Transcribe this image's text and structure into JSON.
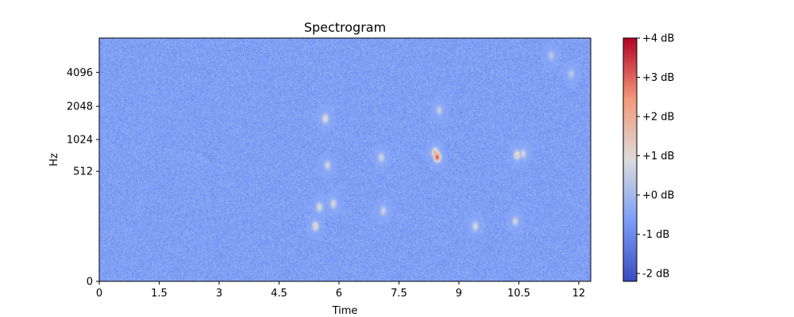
{
  "chart_data": {
    "type": "heatmap",
    "title": "Spectrogram",
    "xlabel": "Time",
    "ylabel": "Hz",
    "xlim": [
      0,
      12.3
    ],
    "x_ticks": [
      0,
      1.5,
      3,
      4.5,
      6,
      7.5,
      9,
      10.5,
      12
    ],
    "x_tick_labels": [
      "0",
      "1.5",
      "3",
      "4.5",
      "6",
      "7.5",
      "9",
      "10.5",
      "12"
    ],
    "y_scale": "log2-like",
    "y_ticks": [
      0,
      512,
      1024,
      2048,
      4096
    ],
    "y_tick_labels": [
      "0",
      "512",
      "1024",
      "2048",
      "4096"
    ],
    "colormap": "coolwarm",
    "colors": {
      "low": "#3b4cc0",
      "mid": "#dddcdc",
      "high": "#b40426"
    },
    "colorbar": {
      "vmin": -2.2,
      "vmax": 4.0,
      "ticks": [
        -2,
        -1,
        0,
        1,
        2,
        3,
        4
      ],
      "tick_labels": [
        "-2 dB",
        "-1 dB",
        "+0 dB",
        "+1 dB",
        "+2 dB",
        "+3 dB",
        "+4 dB"
      ]
    },
    "background_level_db": -0.6,
    "hotspots": [
      {
        "time": 8.45,
        "hz": 710,
        "db": 4.0
      },
      {
        "time": 8.4,
        "hz": 780,
        "db": 2.5
      },
      {
        "time": 5.65,
        "hz": 1600,
        "db": 1.5
      },
      {
        "time": 10.45,
        "hz": 740,
        "db": 1.8
      },
      {
        "time": 10.6,
        "hz": 760,
        "db": 1.0
      },
      {
        "time": 7.05,
        "hz": 700,
        "db": 1.0
      },
      {
        "time": 5.4,
        "hz": 130,
        "db": 1.6
      },
      {
        "time": 5.5,
        "hz": 220,
        "db": 1.3
      },
      {
        "time": 5.85,
        "hz": 240,
        "db": 1.2
      },
      {
        "time": 5.7,
        "hz": 590,
        "db": 1.0
      },
      {
        "time": 9.4,
        "hz": 130,
        "db": 1.2
      },
      {
        "time": 10.4,
        "hz": 150,
        "db": 1.0
      },
      {
        "time": 7.1,
        "hz": 200,
        "db": 0.9
      },
      {
        "time": 8.5,
        "hz": 1900,
        "db": 0.8
      },
      {
        "time": 11.3,
        "hz": 5800,
        "db": 0.6
      },
      {
        "time": 11.8,
        "hz": 4000,
        "db": 0.6
      }
    ]
  }
}
